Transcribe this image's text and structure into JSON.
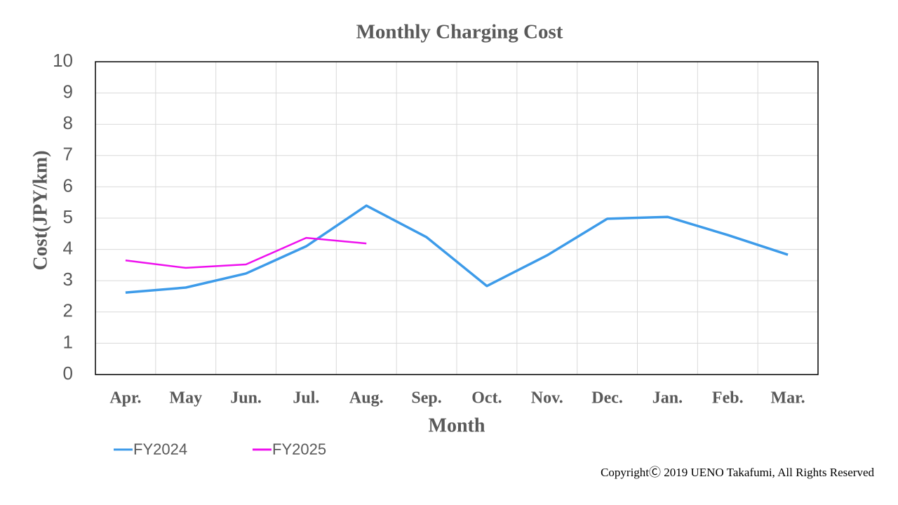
{
  "chart_data": {
    "type": "line",
    "title": "Monthly Charging Cost",
    "x_label": "Month",
    "y_label": "Cost(JPY/km)",
    "categories": [
      "Apr.",
      "May",
      "Jun.",
      "Jul.",
      "Aug.",
      "Sep.",
      "Oct.",
      "Nov.",
      "Dec.",
      "Jan.",
      "Feb.",
      "Mar."
    ],
    "series": [
      {
        "name": "FY2024",
        "color": "#3d9be9",
        "values": [
          2.62,
          2.78,
          3.23,
          4.1,
          5.4,
          4.39,
          2.83,
          3.81,
          4.98,
          5.04,
          4.46,
          3.83
        ]
      },
      {
        "name": "FY2025",
        "color": "#ee10ee",
        "values": [
          3.65,
          3.41,
          3.52,
          4.37,
          4.19,
          null,
          null,
          null,
          null,
          null,
          null,
          null
        ]
      }
    ],
    "ylim": [
      0,
      10
    ],
    "yticks": [
      0,
      1,
      2,
      3,
      4,
      5,
      6,
      7,
      8,
      9,
      10
    ],
    "grid": true,
    "legend": "bottom-left",
    "copyright": "CopyrightⒸ 2019 UENO Takafumi, All Rights Reserved"
  }
}
